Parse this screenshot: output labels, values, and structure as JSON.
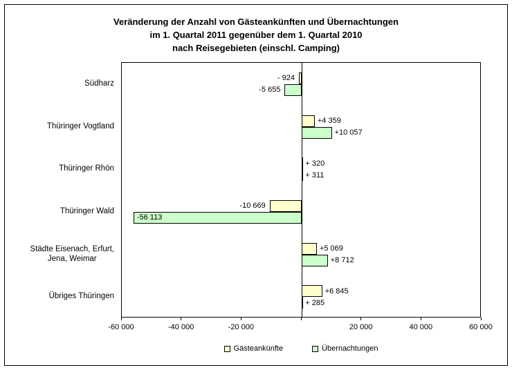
{
  "chart_data": {
    "type": "bar",
    "orientation": "horizontal",
    "title": "Veränderung der Anzahl von Gästeankünften und Übernachtungen\nim 1. Quartal 2011 gegenüber dem 1. Quartal 2010\nnach Reisegebieten (einschl. Camping)",
    "categories": [
      "Südharz",
      "Thüringer Vogtland",
      "Thüringer Rhön",
      "Thüringer Wald",
      "Städte Eisenach, Erfurt,\nJena, Weimar",
      "Übriges Thüringen"
    ],
    "series": [
      {
        "name": "Gästeankünfte",
        "color": "#FFFFCC",
        "border_color": "#000000",
        "values": [
          -924,
          4359,
          320,
          -10669,
          5069,
          6845
        ],
        "data_labels": [
          "- 924",
          "+4 359",
          "+ 320",
          "-10 669",
          "+5 069",
          "+6 845"
        ]
      },
      {
        "name": "Übernachtungen",
        "color": "#CCFFCC",
        "border_color": "#000000",
        "values": [
          -5655,
          10057,
          311,
          -56113,
          8712,
          285
        ],
        "data_labels": [
          "-5 655",
          "+10 057",
          "+ 311",
          "-56 113",
          "+8 712",
          "+ 285"
        ]
      }
    ],
    "xlim": [
      -60000,
      60000
    ],
    "xticks": [
      {
        "value": -60000,
        "label": "-60 000"
      },
      {
        "value": -40000,
        "label": "-40 000"
      },
      {
        "value": -20000,
        "label": "-20 000"
      },
      {
        "value": 0,
        "label": ""
      },
      {
        "value": 20000,
        "label": "20 000"
      },
      {
        "value": 40000,
        "label": "40 000"
      },
      {
        "value": 60000,
        "label": "60 000"
      }
    ],
    "grid": "off",
    "legend_position": "bottom"
  }
}
